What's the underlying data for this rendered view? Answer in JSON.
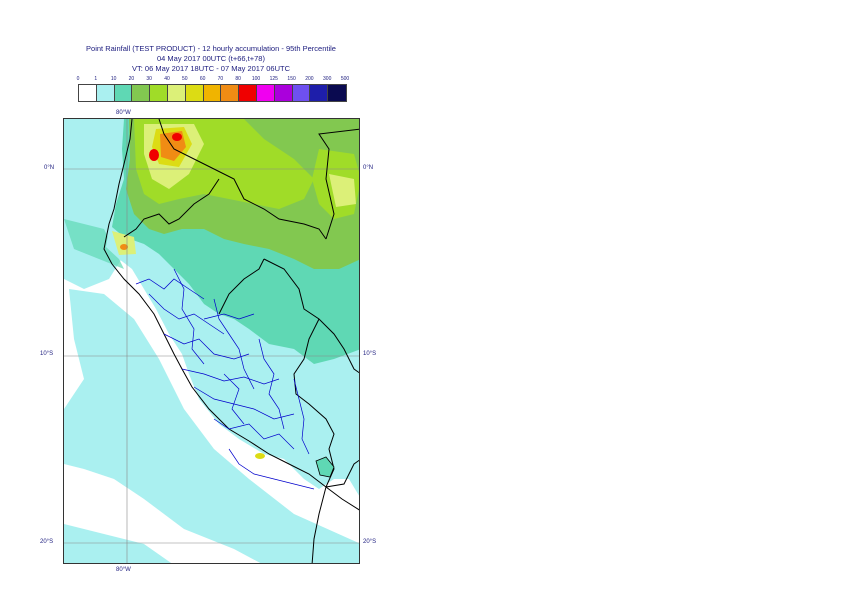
{
  "title": {
    "line1": "Point Rainfall (TEST PRODUCT) - 12 hourly accumulation - 95th Percentile",
    "line2": "04 May 2017 00UTC (t+66,t+78)",
    "line3": "VT: 06 May 2017 18UTC - 07 May 2017 06UTC"
  },
  "legend": {
    "labels": [
      "0",
      "1",
      "10",
      "20",
      "30",
      "40",
      "50",
      "60",
      "70",
      "80",
      "100",
      "125",
      "150",
      "200",
      "300",
      "500"
    ],
    "colors": [
      "#ffffff",
      "#aaf0f0",
      "#5fd8b4",
      "#82c850",
      "#a0dc28",
      "#dcf078",
      "#dcdc14",
      "#f0b400",
      "#f08c14",
      "#f00000",
      "#f000f0",
      "#aa00dc",
      "#6e50f0",
      "#1e1eaa",
      "#0a0a50"
    ]
  },
  "map": {
    "lon_label_top": "80°W",
    "lon_label_bottom": "80°W",
    "lat_labels": [
      "0°N",
      "10°S",
      "20°S"
    ],
    "colors": {
      "sea": "#ffffff",
      "light": "#aaf0f0",
      "teal": "#5fd8b4",
      "green": "#82c850",
      "yellowgreen": "#a0dc28",
      "paleyellow": "#dcf078",
      "yellow": "#dcdc14",
      "orange": "#f08c14",
      "red": "#f00000",
      "border_country": "#000000",
      "border_region": "#0000cc"
    }
  }
}
